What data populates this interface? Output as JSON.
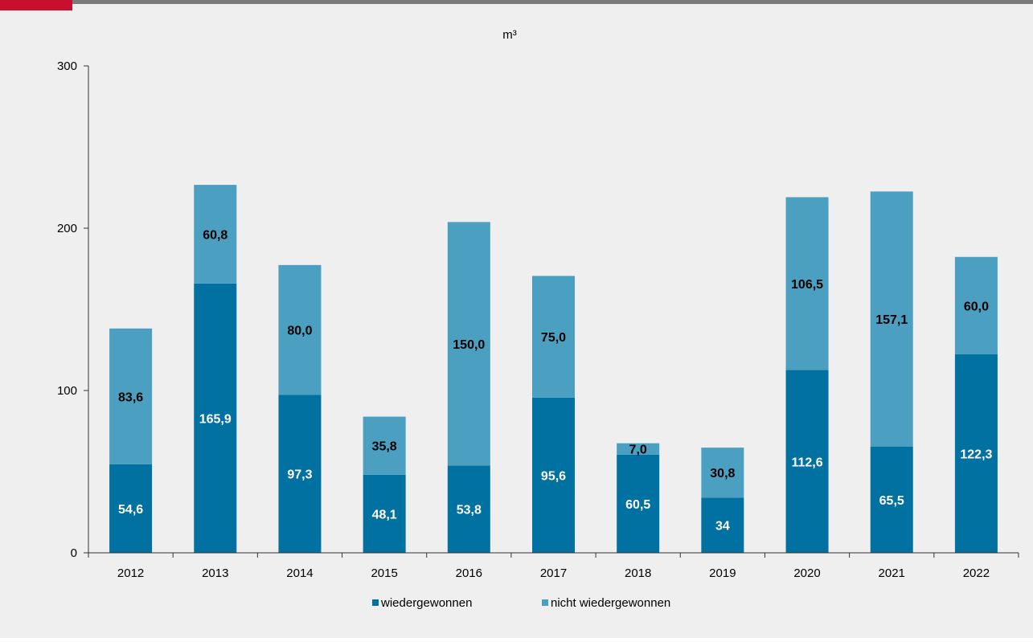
{
  "colors": {
    "background": "#efefef",
    "top_bar": "#7a7a7a",
    "top_accent": "#c8102e",
    "series_recovered": "#0071a0",
    "series_not_recovered": "#4b9fc0",
    "axis": "#333333"
  },
  "chart_data": {
    "type": "bar",
    "stacked": true,
    "unit_label": "m³",
    "categories": [
      "2012",
      "2013",
      "2014",
      "2015",
      "2016",
      "2017",
      "2018",
      "2019",
      "2020",
      "2021",
      "2022"
    ],
    "series": [
      {
        "name": "wiedergewonnen",
        "values": [
          54.6,
          165.9,
          97.3,
          48.1,
          53.8,
          95.6,
          60.5,
          34,
          112.6,
          65.5,
          122.3
        ],
        "labels": [
          "54,6",
          "165,9",
          "97,3",
          "48,1",
          "53,8",
          "95,6",
          "60,5",
          "34",
          "112,6",
          "65,5",
          "122,3"
        ]
      },
      {
        "name": "nicht wiedergewonnen",
        "values": [
          83.6,
          60.8,
          80.0,
          35.8,
          150.0,
          75.0,
          7.0,
          30.8,
          106.5,
          157.1,
          60.0
        ],
        "labels": [
          "83,6",
          "60,8",
          "80,0",
          "35,8",
          "150,0",
          "75,0",
          "7,0",
          "30,8",
          "106,5",
          "157,1",
          "60,0"
        ]
      }
    ],
    "ylim": [
      0,
      300
    ],
    "yticks": [
      0,
      100,
      200,
      300
    ],
    "legend_position": "bottom-center",
    "grid": false
  }
}
